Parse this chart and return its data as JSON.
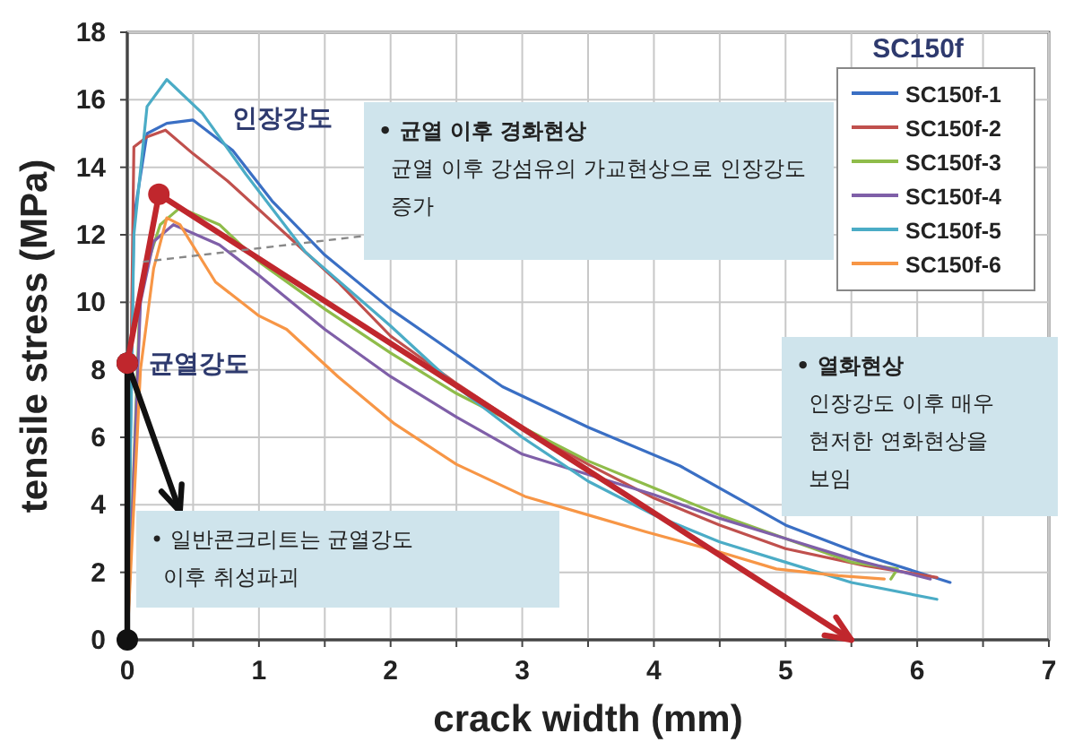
{
  "chart_data": {
    "type": "line",
    "title": "SC150f",
    "xlabel": "crack width (mm)",
    "ylabel": "tensile stress (MPa)",
    "xlim": [
      0,
      7
    ],
    "ylim": [
      0,
      18
    ],
    "xticks": [
      0,
      {
        "value": 0.5,
        "label": null
      },
      1,
      {
        "value": 1.5,
        "label": null
      },
      2,
      {
        "value": 2.5,
        "label": null
      },
      3,
      {
        "value": 3.5,
        "label": null
      },
      4,
      {
        "value": 4.5,
        "label": null
      },
      5,
      {
        "value": 5.5,
        "label": null
      },
      6,
      {
        "value": 6.5,
        "label": null
      },
      7
    ],
    "yticks": [
      0,
      2,
      4,
      6,
      8,
      10,
      12,
      14,
      16,
      18
    ],
    "grid": true,
    "legend": "top right",
    "line_style": "solid",
    "series": [
      {
        "name": "SC150f-1",
        "color": "#3a6fc4",
        "x": [
          0,
          0.05,
          0.15,
          0.3,
          0.5,
          0.8,
          1.1,
          1.5,
          2,
          2.85,
          3.5,
          4.2,
          5,
          5.6,
          6.25
        ],
        "values": [
          0,
          12.5,
          15,
          15.3,
          15.4,
          14.5,
          13,
          11.4,
          9.8,
          7.5,
          6.3,
          5.15,
          3.4,
          2.5,
          1.7
        ]
      },
      {
        "name": "SC150f-2",
        "color": "#c0504d",
        "x": [
          0,
          0.05,
          0.15,
          0.29,
          0.5,
          0.76,
          1.21,
          1.6,
          2,
          2.5,
          3,
          3.5,
          4,
          4.5,
          5,
          5.6,
          6.15
        ],
        "values": [
          0,
          14.6,
          14.9,
          15.1,
          14.4,
          13.6,
          12,
          10.6,
          9,
          7.6,
          6.3,
          5.2,
          4.2,
          3.4,
          2.7,
          2.2,
          1.85
        ]
      },
      {
        "name": "SC150f-3",
        "color": "#8fbc4a",
        "x": [
          0,
          0.1,
          0.25,
          0.4,
          0.7,
          1,
          1.5,
          2,
          2.5,
          3,
          3.5,
          4,
          4.5,
          5,
          5.5,
          5.85,
          5.8
        ],
        "values": [
          0,
          10.5,
          12.3,
          12.8,
          12.3,
          11.2,
          9.8,
          8.5,
          7.3,
          6.3,
          5.3,
          4.5,
          3.7,
          3,
          2.3,
          2.1,
          1.8
        ]
      },
      {
        "name": "SC150f-4",
        "color": "#7f5fa8",
        "x": [
          0,
          0.1,
          0.2,
          0.35,
          0.7,
          1,
          1.5,
          2,
          2.5,
          3,
          3.5,
          4,
          4.5,
          5,
          5.5,
          6.1
        ],
        "values": [
          0,
          10,
          11.8,
          12.3,
          11.7,
          10.8,
          9.2,
          7.8,
          6.6,
          5.5,
          4.9,
          4.3,
          3.6,
          3,
          2.4,
          1.8
        ]
      },
      {
        "name": "SC150f-5",
        "color": "#4bacc6",
        "x": [
          0,
          0.05,
          0.15,
          0.3,
          0.57,
          0.9,
          1.35,
          2,
          2.5,
          3,
          3.5,
          4,
          4.5,
          5,
          5.5,
          6.15
        ],
        "values": [
          0,
          12,
          15.8,
          16.6,
          15.6,
          13.8,
          11.5,
          9.3,
          7.5,
          6,
          4.7,
          3.7,
          2.9,
          2.3,
          1.7,
          1.2
        ]
      },
      {
        "name": "SC150f-6",
        "color": "#f79646",
        "x": [
          0,
          0.1,
          0.2,
          0.3,
          0.4,
          0.67,
          1,
          1.21,
          1.6,
          2.03,
          2.5,
          3.02,
          3.5,
          3.94,
          4.5,
          4.93,
          5.4,
          5.75
        ],
        "values": [
          0,
          8,
          11,
          12.5,
          12.3,
          10.6,
          9.6,
          9.2,
          7.8,
          6.4,
          5.2,
          4.25,
          3.7,
          3.2,
          2.6,
          2.1,
          1.9,
          1.8
        ]
      },
      {
        "color": "#111111",
        "x": [
          0,
          0,
          0.4
        ],
        "values": [
          0,
          8.2,
          3.8
        ],
        "marker": "circle"
      },
      {
        "color": "#c0272d",
        "x": [
          0,
          0.24,
          5.5
        ],
        "values": [
          8.2,
          13.2,
          0
        ],
        "marker": "circle"
      }
    ],
    "annotations": [
      "인장강도",
      {
        "text": "균열강도",
        "x": 0,
        "y": 8.2
      },
      {
        "text": "• 균열 이후 경화현상\n균열 이후 강섬유의 가교현상으로 인장강도\n증가",
        "x": 0.12,
        "y": 11.2
      },
      "• 열화현상\n인장강도 이후 매우\n현저한 연화현상을\n보임",
      "• 일반콘크리트는 균열강도\n이후 취성파괴"
    ]
  }
}
